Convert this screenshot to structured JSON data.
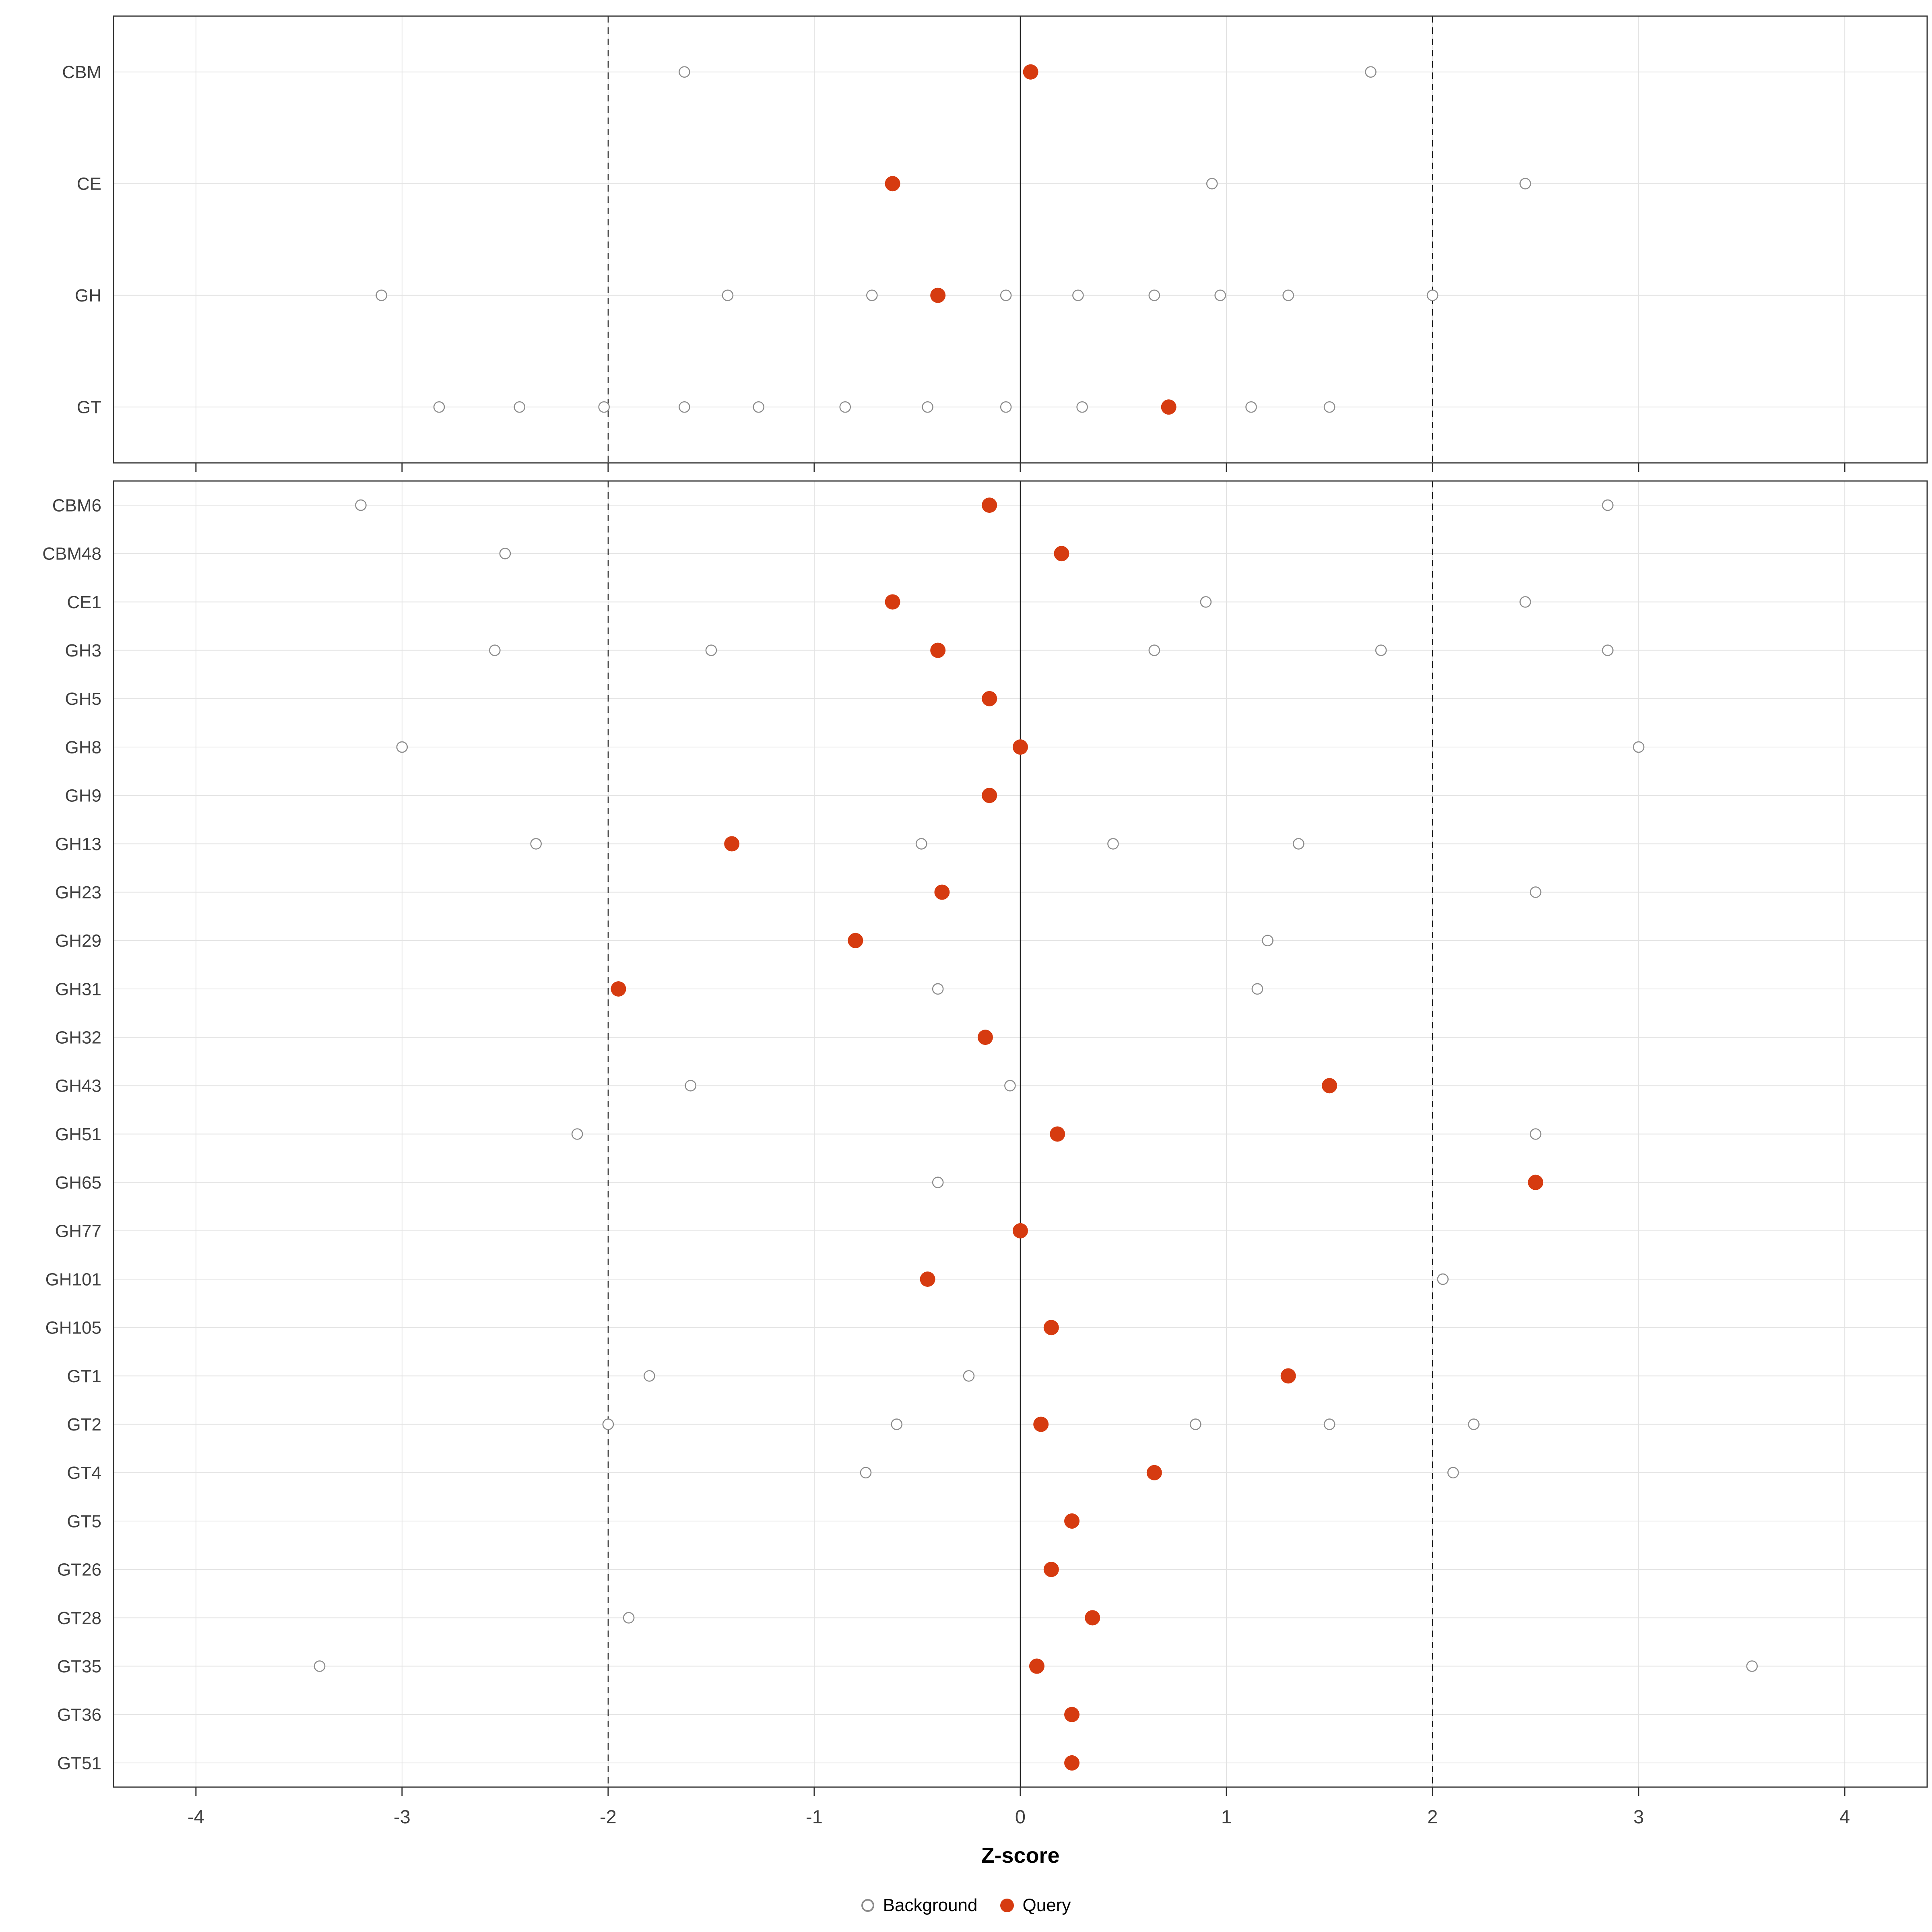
{
  "chart_data": {
    "type": "scatter",
    "title": "",
    "xlabel": "Z-score",
    "xlim": [
      -4.4,
      4.4
    ],
    "x_ticks": [
      -4,
      -3,
      -2,
      -1,
      0,
      1,
      2,
      3,
      4
    ],
    "grid": true,
    "reference_lines": {
      "solid": [
        0
      ],
      "dashed": [
        -2,
        2
      ]
    },
    "legend_position": "bottom",
    "legend": [
      {
        "label": "Background",
        "style": "open"
      },
      {
        "label": "Query",
        "style": "filled"
      }
    ],
    "colors": {
      "query": "#d63b10",
      "background_stroke": "#8c8c8c",
      "grid": "#e3e3e3",
      "axis_text": "#404040",
      "line": "#222222",
      "panel_border": "#333333"
    },
    "panels": [
      {
        "name": "family-class-panel",
        "rows": [
          {
            "label": "CBM",
            "background": [
              -1.63,
              1.7
            ],
            "query": 0.05
          },
          {
            "label": "CE",
            "background": [
              0.93,
              2.45
            ],
            "query": -0.62
          },
          {
            "label": "GH",
            "background": [
              -3.1,
              -1.42,
              -0.72,
              -0.07,
              0.28,
              0.65,
              0.97,
              1.3,
              2.0
            ],
            "query": -0.4
          },
          {
            "label": "GT",
            "background": [
              -2.82,
              -2.43,
              -2.02,
              -1.63,
              -1.27,
              -0.85,
              -0.45,
              -0.07,
              0.3,
              1.12,
              1.5
            ],
            "query": 0.72
          }
        ]
      },
      {
        "name": "family-panel",
        "rows": [
          {
            "label": "CBM6",
            "background": [
              -3.2,
              2.85
            ],
            "query": -0.15
          },
          {
            "label": "CBM48",
            "background": [
              -2.5
            ],
            "query": 0.2
          },
          {
            "label": "CE1",
            "background": [
              0.9,
              2.45
            ],
            "query": -0.62
          },
          {
            "label": "GH3",
            "background": [
              -2.55,
              -1.5,
              0.65,
              1.75,
              2.85
            ],
            "query": -0.4
          },
          {
            "label": "GH5",
            "background": [],
            "query": -0.15
          },
          {
            "label": "GH8",
            "background": [
              -3.0,
              3.0
            ],
            "query": 0.0
          },
          {
            "label": "GH9",
            "background": [],
            "query": -0.15
          },
          {
            "label": "GH13",
            "background": [
              -2.35,
              -0.48,
              0.45,
              1.35
            ],
            "query": -1.4
          },
          {
            "label": "GH23",
            "background": [
              2.5
            ],
            "query": -0.38
          },
          {
            "label": "GH29",
            "background": [
              1.2
            ],
            "query": -0.8
          },
          {
            "label": "GH31",
            "background": [
              -0.4,
              1.15
            ],
            "query": -1.95
          },
          {
            "label": "GH32",
            "background": [],
            "query": -0.17
          },
          {
            "label": "GH43",
            "background": [
              -1.6,
              -0.05
            ],
            "query": 1.5
          },
          {
            "label": "GH51",
            "background": [
              -2.15,
              2.5
            ],
            "query": 0.18
          },
          {
            "label": "GH65",
            "background": [
              -0.4
            ],
            "query": 2.5
          },
          {
            "label": "GH77",
            "background": [],
            "query": 0.0
          },
          {
            "label": "GH101",
            "background": [
              2.05
            ],
            "query": -0.45
          },
          {
            "label": "GH105",
            "background": [],
            "query": 0.15
          },
          {
            "label": "GT1",
            "background": [
              -1.8,
              -0.25
            ],
            "query": 1.3
          },
          {
            "label": "GT2",
            "background": [
              -2.0,
              -0.6,
              0.85,
              1.5,
              2.2
            ],
            "query": 0.1
          },
          {
            "label": "GT4",
            "background": [
              -0.75,
              2.1
            ],
            "query": 0.65
          },
          {
            "label": "GT5",
            "background": [],
            "query": 0.25
          },
          {
            "label": "GT26",
            "background": [],
            "query": 0.15
          },
          {
            "label": "GT28",
            "background": [
              -1.9
            ],
            "query": 0.35
          },
          {
            "label": "GT35",
            "background": [
              -3.4,
              3.55
            ],
            "query": 0.08
          },
          {
            "label": "GT36",
            "background": [],
            "query": 0.25
          },
          {
            "label": "GT51",
            "background": [],
            "query": 0.25
          }
        ]
      }
    ]
  }
}
